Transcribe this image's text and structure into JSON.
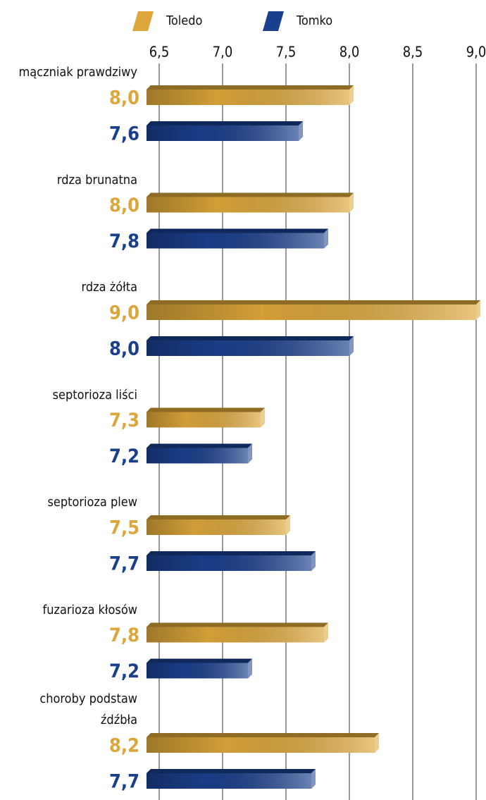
{
  "chart_data": {
    "type": "bar",
    "orientation": "horizontal",
    "categories": [
      "mączniak prawdziwy",
      "rdza brunatna",
      "rdza żółta",
      "septorioza liści",
      "septorioza plew",
      "fuzarioza kłosów",
      "choroby podstaw źdźbła"
    ],
    "series": [
      {
        "name": "Toledo",
        "color": "#dca63a",
        "values": [
          8.0,
          8.0,
          9.0,
          7.3,
          7.5,
          7.8,
          8.2
        ],
        "value_labels": [
          "8,0",
          "8,0",
          "9,0",
          "7,3",
          "7,5",
          "7,8",
          "8,2"
        ]
      },
      {
        "name": "Tomko",
        "color": "#1a3f8c",
        "values": [
          7.6,
          7.8,
          8.0,
          7.2,
          7.7,
          7.2,
          7.7
        ],
        "value_labels": [
          "7,6",
          "7,8",
          "8,0",
          "7,2",
          "7,7",
          "7,2",
          "7,7"
        ]
      }
    ],
    "xlim": [
      6.4,
      9.0
    ],
    "xticks": [
      {
        "value": 6.5,
        "label": "6,5"
      },
      {
        "value": 7.0,
        "label": "7,0"
      },
      {
        "value": 7.5,
        "label": "7,5"
      },
      {
        "value": 8.0,
        "label": "8,0"
      },
      {
        "value": 8.5,
        "label": "8,5"
      },
      {
        "value": 9.0,
        "label": "9,0"
      }
    ],
    "grid": true,
    "legend": "top"
  }
}
